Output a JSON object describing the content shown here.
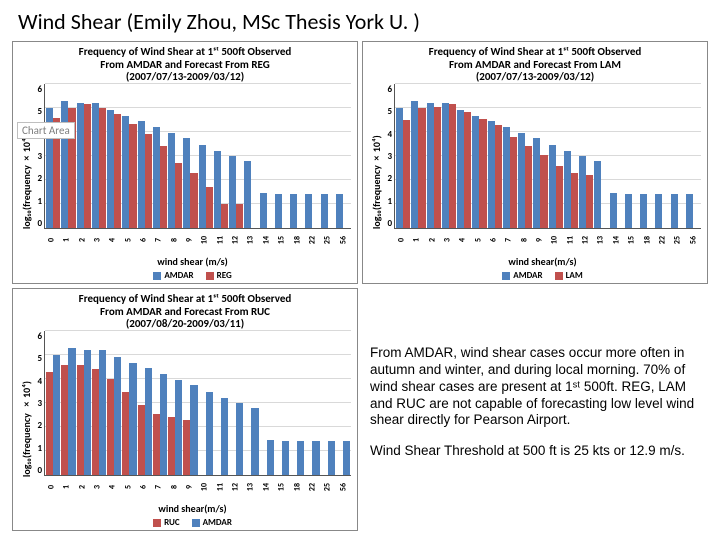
{
  "page_title": "Wind Shear (Emily Zhou, MSc Thesis York U. )",
  "colors": {
    "amdar": "#4f81bd",
    "reg": "#c0504d",
    "lam": "#c0504d",
    "ruc": "#c0504d",
    "grid": "#d9d9d9",
    "axis": "#555555"
  },
  "x_categories": [
    "0",
    "1",
    "2",
    "3",
    "4",
    "5",
    "6",
    "7",
    "8",
    "9",
    "10",
    "11",
    "12",
    "13",
    "14",
    "15",
    "18",
    "22",
    "25",
    "56"
  ],
  "x_label": "wind shear (m/s)",
  "y_ticks": [
    0,
    1,
    2,
    3,
    4,
    5,
    6
  ],
  "y_max": 6,
  "chart_reg": {
    "title": "Frequency of Wind Shear at 1ˢᵗ 500ft Observed<br>From AMDAR and Forecast From REG<br>(2007/07/13-2009/03/12)",
    "ylabel": "log₁₀(frequency×10⁴)",
    "xlabel": "wind shear (m/s)",
    "series": [
      {
        "name": "AMDAR",
        "color": "#4f81bd",
        "values": [
          5.0,
          5.3,
          5.2,
          5.2,
          4.9,
          4.65,
          4.45,
          4.2,
          3.95,
          3.75,
          3.45,
          3.2,
          3.0,
          2.8,
          1.45,
          1.4,
          1.4,
          1.4,
          1.4,
          1.4
        ]
      },
      {
        "name": "REG",
        "color": "#c0504d",
        "values": [
          4.6,
          5.0,
          5.15,
          5.0,
          4.75,
          4.35,
          3.9,
          3.4,
          2.7,
          2.3,
          1.7,
          1.0,
          1.0,
          0,
          0,
          0,
          0,
          0,
          0,
          0
        ]
      }
    ],
    "chart_area_label": "Chart Area"
  },
  "chart_lam": {
    "title": "Frequency of Wind Shear at 1ˢᵗ 500ft Observed<br>From AMDAR and Forecast From LAM<br>(2007/07/13-2009/03/12)",
    "ylabel": "log₁₀(frequency×10⁴)",
    "xlabel": "wind shear(m/s)",
    "series": [
      {
        "name": "AMDAR",
        "color": "#4f81bd",
        "values": [
          5.0,
          5.3,
          5.2,
          5.2,
          4.9,
          4.65,
          4.45,
          4.2,
          3.95,
          3.75,
          3.45,
          3.2,
          3.0,
          2.8,
          1.45,
          1.4,
          1.4,
          1.4,
          1.4,
          1.4
        ]
      },
      {
        "name": "LAM",
        "color": "#c0504d",
        "values": [
          4.5,
          5.0,
          5.05,
          5.15,
          4.85,
          4.55,
          4.3,
          3.8,
          3.4,
          3.05,
          2.6,
          2.3,
          2.2,
          0,
          0,
          0,
          0,
          0,
          0,
          0
        ]
      }
    ]
  },
  "chart_ruc": {
    "title": "Frequency of Wind Shear at 1ˢᵗ 500ft Observed<br>From AMDAR and Forecast From RUC<br>(2007/08/20-2009/03/11)",
    "ylabel": "log₁₀(frequency ×10⁴)",
    "xlabel": "wind shear(m/s)",
    "series": [
      {
        "name": "RUC",
        "color": "#c0504d",
        "values": [
          4.3,
          4.6,
          4.6,
          4.4,
          4.0,
          3.45,
          2.9,
          2.55,
          2.4,
          2.3,
          0,
          0,
          0,
          0,
          0,
          0,
          0,
          0,
          0,
          0
        ]
      },
      {
        "name": "AMDAR",
        "color": "#4f81bd",
        "values": [
          5.0,
          5.3,
          5.2,
          5.2,
          4.9,
          4.65,
          4.45,
          4.2,
          3.95,
          3.75,
          3.45,
          3.2,
          3.0,
          2.8,
          1.45,
          1.4,
          1.4,
          1.4,
          1.4,
          1.4
        ]
      }
    ]
  },
  "text_block": {
    "p1": "From AMDAR, wind shear cases occur more often in autumn and winter, and during local morning. 70% of wind shear cases are present at 1ˢᵗ 500ft. REG, LAM and RUC are not capable of forecasting low level wind shear directly for Pearson Airport.",
    "p2": "Wind Shear Threshold at 500 ft is 25 kts or 12.9 m/s."
  }
}
